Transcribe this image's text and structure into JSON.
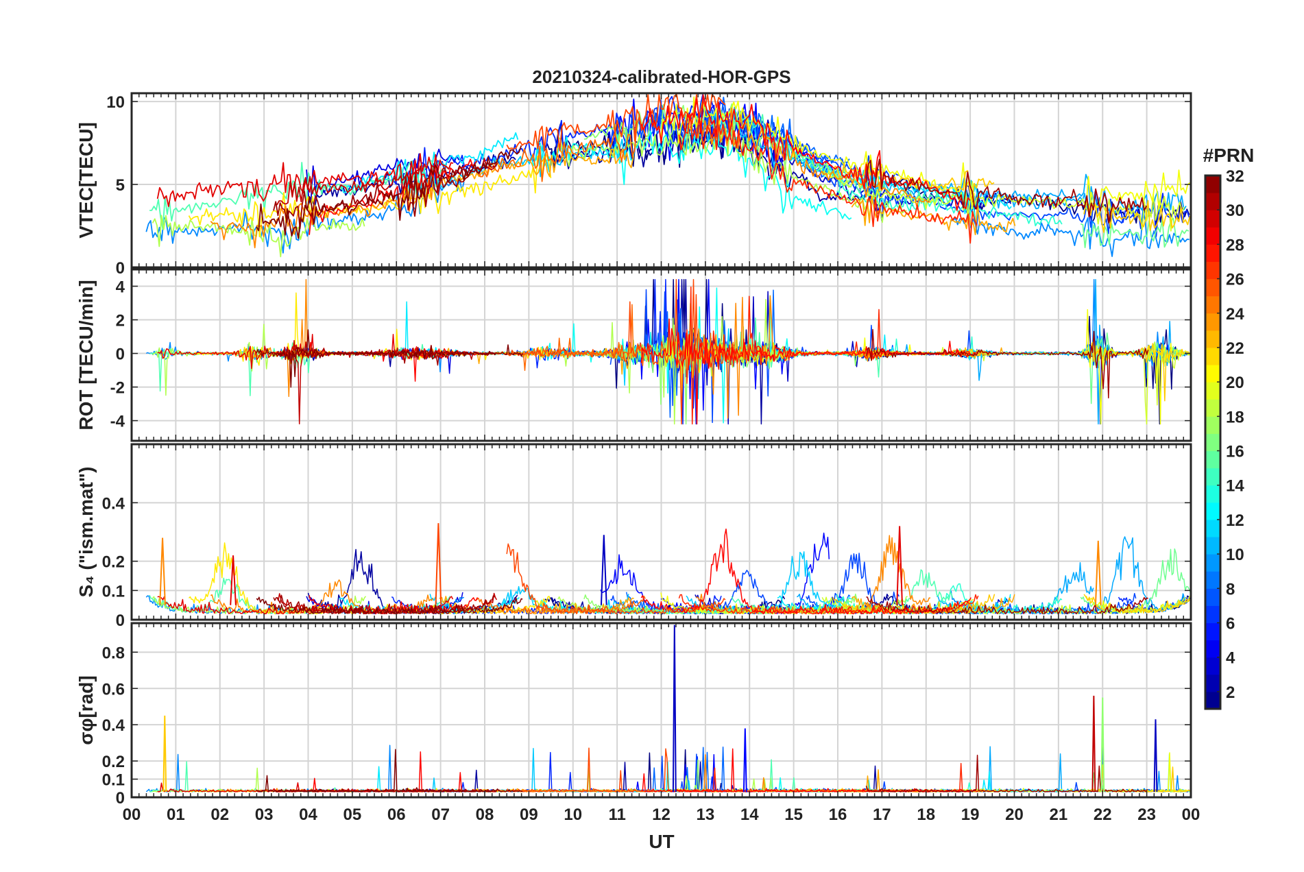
{
  "chart_data": {
    "type": "line",
    "title": "20210324-calibrated-HOR-GPS",
    "xlabel": "UT",
    "xlim": [
      0,
      24
    ],
    "x_ticks": [
      0,
      1,
      2,
      3,
      4,
      5,
      6,
      7,
      8,
      9,
      10,
      11,
      12,
      13,
      14,
      15,
      16,
      17,
      18,
      19,
      20,
      21,
      22,
      23,
      24
    ],
    "x_tick_labels": [
      "00",
      "01",
      "02",
      "03",
      "04",
      "05",
      "06",
      "07",
      "08",
      "09",
      "10",
      "11",
      "12",
      "13",
      "14",
      "15",
      "16",
      "17",
      "18",
      "19",
      "20",
      "21",
      "22",
      "23",
      "00"
    ],
    "colorbar": {
      "title": "#PRN",
      "range": [
        1,
        32
      ],
      "ticks": [
        2,
        4,
        6,
        8,
        10,
        12,
        14,
        16,
        18,
        20,
        22,
        24,
        26,
        28,
        30,
        32
      ],
      "tick_labels": [
        "2",
        "4",
        "6",
        "8",
        "10",
        "12",
        "14",
        "16",
        "18",
        "20",
        "22",
        "24",
        "26",
        "28",
        "30",
        "32"
      ],
      "colormap": "jet"
    },
    "panels": [
      {
        "id": "vtec",
        "ylabel": "VTEC[TECU]",
        "ylim": [
          0,
          10.5
        ],
        "y_ticks": [
          0,
          5,
          10
        ],
        "y_tick_labels": [
          "0",
          "5",
          "10"
        ],
        "kind": "vtec"
      },
      {
        "id": "rot",
        "ylabel": "ROT [TECU/min]",
        "ylim": [
          -5.2,
          5.0
        ],
        "y_ticks": [
          -4,
          -2,
          0,
          2,
          4
        ],
        "y_tick_labels": [
          "-4",
          "-2",
          "0",
          "2",
          "4"
        ],
        "kind": "rot"
      },
      {
        "id": "s4",
        "ylabel": "S₄ (\"ism.mat\")",
        "ylim": [
          0,
          0.6
        ],
        "y_ticks": [
          0,
          0.1,
          0.2,
          0.4
        ],
        "y_tick_labels": [
          "0",
          "0.1",
          "0.2",
          "0.4"
        ],
        "kind": "s4"
      },
      {
        "id": "sigphi",
        "ylabel": "σφ[rad]",
        "ylim": [
          0,
          0.96
        ],
        "y_ticks": [
          0,
          0.1,
          0.2,
          0.4,
          0.6,
          0.8
        ],
        "y_tick_labels": [
          "0",
          "0.1",
          "0.2",
          "0.4",
          "0.6",
          "0.8"
        ],
        "kind": "sigphi"
      }
    ],
    "series_note": "Multiple GPS PRN satellite traces per panel, colour-coded by PRN number (1-32). Key features: VTEC diurnal rise to ~8-10 TECU near 10-14 UT; ROT bursts up to ±4 TECU/min near 12-13 UT and 22 UT; S4 mostly below 0.3 with peak ~0.33 near 07 UT; sigma-phi spike ~0.95 rad near 12.3 UT and ~0.55 near 21.8 UT."
  }
}
